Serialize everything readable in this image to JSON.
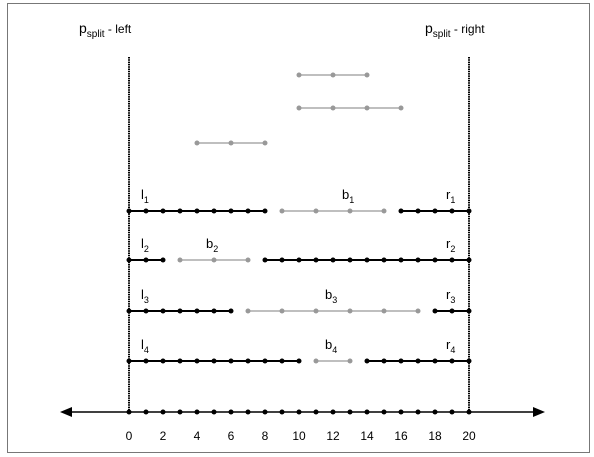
{
  "header": {
    "left_p": "p",
    "left_sub": "split",
    "left_rest": " - left",
    "right_p": "p",
    "right_sub": "split",
    "right_rest": " - right"
  },
  "axis": {
    "min": 0,
    "max": 20,
    "tick_labels": [
      "0",
      "2",
      "4",
      "6",
      "8",
      "10",
      "12",
      "14",
      "16",
      "18",
      "20"
    ],
    "point_values": [
      0,
      1,
      2,
      3,
      4,
      5,
      6,
      7,
      8,
      9,
      10,
      11,
      12,
      13,
      14,
      15,
      16,
      17,
      18,
      19,
      20
    ]
  },
  "colors": {
    "black": "#000000",
    "gray": "#999999"
  },
  "floating_segments": [
    {
      "from": 10,
      "to": 14,
      "points": [
        10,
        12,
        14
      ]
    },
    {
      "from": 10,
      "to": 16,
      "points": [
        10,
        12,
        14,
        16
      ]
    },
    {
      "from": 4,
      "to": 8,
      "points": [
        4,
        6,
        8
      ]
    }
  ],
  "rows": [
    {
      "l_letter": "l",
      "l_sub": "1",
      "b_letter": "b",
      "b_sub": "1",
      "b_label_value": 13,
      "r_letter": "r",
      "r_sub": "1",
      "left": {
        "from": 0,
        "to": 8,
        "points": [
          0,
          1,
          2,
          3,
          4,
          5,
          6,
          7,
          8
        ]
      },
      "mid": {
        "from": 9,
        "to": 15,
        "points": [
          9,
          11,
          13,
          15
        ]
      },
      "right": {
        "from": 16,
        "to": 20,
        "points": [
          16,
          17,
          18,
          19,
          20
        ]
      }
    },
    {
      "l_letter": "l",
      "l_sub": "2",
      "b_letter": "b",
      "b_sub": "2",
      "b_label_value": 5,
      "r_letter": "r",
      "r_sub": "2",
      "left": {
        "from": 0,
        "to": 2,
        "points": [
          0,
          1,
          2
        ]
      },
      "mid": {
        "from": 3,
        "to": 7,
        "points": [
          3,
          5,
          7
        ]
      },
      "right": {
        "from": 8,
        "to": 20,
        "points": [
          8,
          9,
          10,
          11,
          12,
          13,
          14,
          15,
          16,
          17,
          18,
          19,
          20
        ]
      }
    },
    {
      "l_letter": "l",
      "l_sub": "3",
      "b_letter": "b",
      "b_sub": "3",
      "b_label_value": 12,
      "r_letter": "r",
      "r_sub": "3",
      "left": {
        "from": 0,
        "to": 6,
        "points": [
          0,
          1,
          2,
          3,
          4,
          5,
          6
        ]
      },
      "mid": {
        "from": 7,
        "to": 17,
        "points": [
          7,
          9,
          11,
          13,
          15,
          17
        ]
      },
      "right": {
        "from": 18,
        "to": 20,
        "points": [
          18,
          19,
          20
        ]
      }
    },
    {
      "l_letter": "l",
      "l_sub": "4",
      "b_letter": "b",
      "b_sub": "4",
      "b_label_value": 12,
      "r_letter": "r",
      "r_sub": "4",
      "left": {
        "from": 0,
        "to": 10,
        "points": [
          0,
          1,
          2,
          3,
          4,
          5,
          6,
          7,
          8,
          9,
          10
        ]
      },
      "mid": {
        "from": 11,
        "to": 13,
        "points": [
          11,
          13
        ]
      },
      "right": {
        "from": 14,
        "to": 20,
        "points": [
          14,
          15,
          16,
          17,
          18,
          19,
          20
        ]
      }
    }
  ]
}
